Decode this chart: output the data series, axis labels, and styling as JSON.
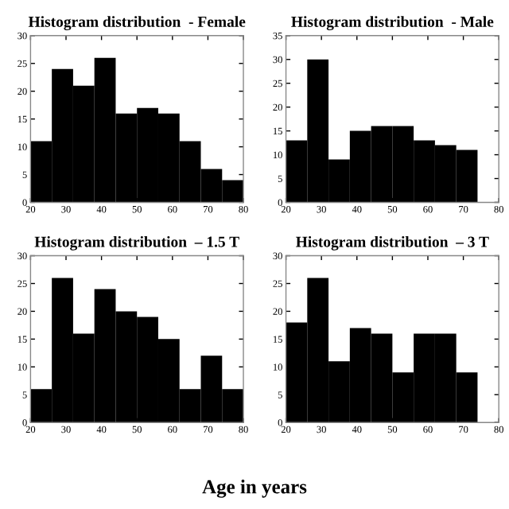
{
  "chart_data": [
    {
      "type": "histogram",
      "title": "Histogram distribution  - Female",
      "bins": [
        20,
        26,
        32,
        38,
        44,
        50,
        56,
        62,
        68,
        74,
        80
      ],
      "values": [
        11,
        24,
        21,
        26,
        16,
        17,
        16,
        11,
        6,
        4
      ],
      "color": "#000000",
      "xlim": [
        20,
        80
      ],
      "xticks": [
        20,
        30,
        40,
        50,
        60,
        70,
        80
      ],
      "ylim": [
        0,
        30
      ],
      "yticks": [
        0,
        5,
        10,
        15,
        20,
        25,
        30
      ],
      "grid": false
    },
    {
      "type": "histogram",
      "title": "Histogram distribution  - Male",
      "bins": [
        20,
        26,
        32,
        38,
        44,
        50,
        56,
        62,
        68,
        74,
        80
      ],
      "values": [
        13,
        30,
        9,
        15,
        16,
        16,
        13,
        12,
        11,
        null
      ],
      "color": "#000000",
      "xlim": [
        20,
        80
      ],
      "xticks": [
        20,
        30,
        40,
        50,
        60,
        70,
        80
      ],
      "ylim": [
        0,
        35
      ],
      "yticks": [
        0,
        5,
        10,
        15,
        20,
        25,
        30,
        35
      ],
      "grid": false
    },
    {
      "type": "histogram",
      "title": "Histogram distribution  – 1.5 T",
      "xlabel": "Age in years",
      "bins": [
        20,
        26,
        32,
        38,
        44,
        50,
        56,
        62,
        68,
        74,
        80
      ],
      "values": [
        6,
        26,
        16,
        24,
        20,
        19,
        15,
        6,
        12,
        6
      ],
      "color": "#000000",
      "xlim": [
        20,
        80
      ],
      "xticks": [
        20,
        30,
        40,
        50,
        60,
        70,
        80
      ],
      "ylim": [
        0,
        30
      ],
      "yticks": [
        0,
        5,
        10,
        15,
        20,
        25,
        30
      ],
      "grid": false
    },
    {
      "type": "histogram",
      "title": "Histogram distribution  – 3 T",
      "bins": [
        20,
        26,
        32,
        38,
        44,
        50,
        56,
        62,
        68,
        74,
        80
      ],
      "values": [
        18,
        26,
        11,
        17,
        16,
        9,
        16,
        16,
        9,
        null
      ],
      "color": "#000000",
      "xlim": [
        20,
        80
      ],
      "xticks": [
        20,
        30,
        40,
        50,
        60,
        70,
        80
      ],
      "ylim": [
        0,
        30
      ],
      "yticks": [
        0,
        5,
        10,
        15,
        20,
        25,
        30
      ],
      "grid": false
    }
  ]
}
